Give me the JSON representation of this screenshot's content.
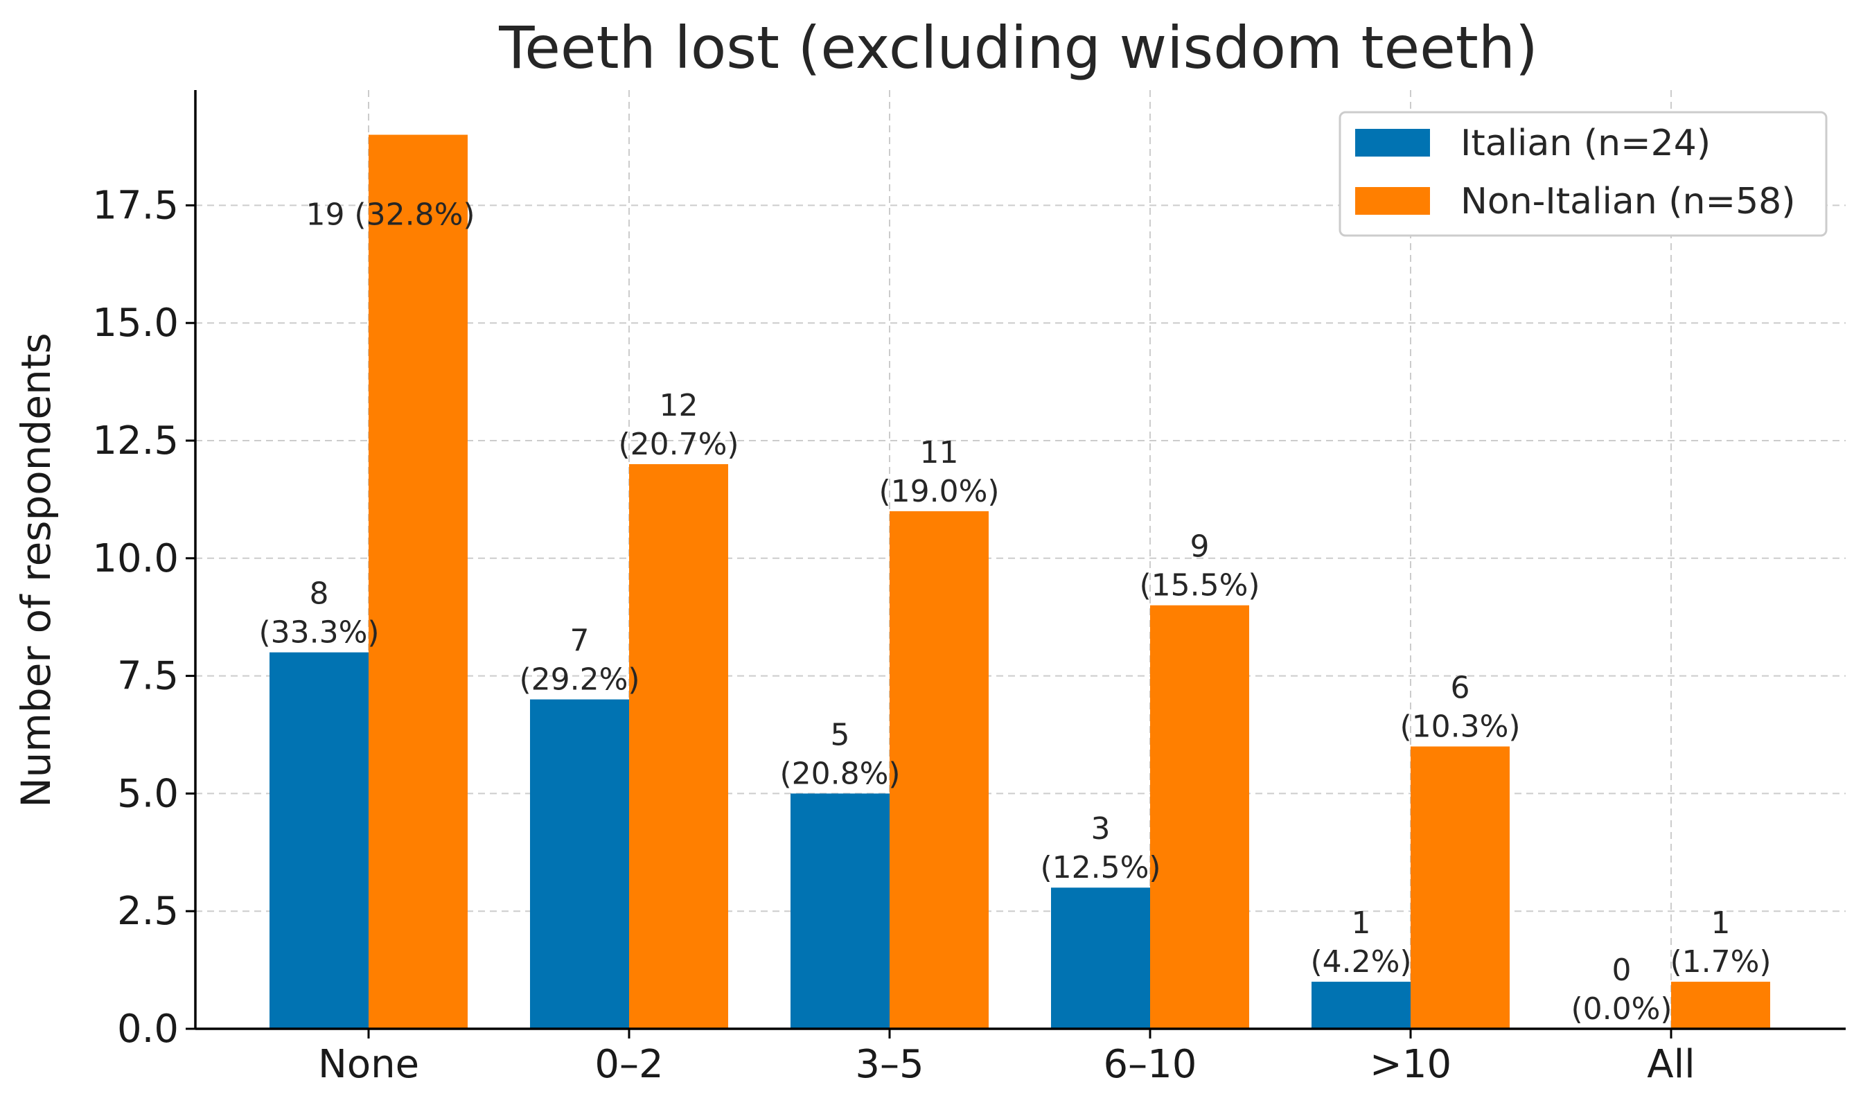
{
  "chart_data": {
    "type": "bar",
    "title": "Teeth lost (excluding wisdom teeth)",
    "xlabel": "",
    "ylabel": "Number of respondents",
    "categories": [
      "None",
      "0–2",
      "3–5",
      "6–10",
      ">10",
      "All"
    ],
    "ylim": [
      0,
      19.95
    ],
    "yticks": [
      0,
      2.5,
      5,
      7.5,
      10,
      12.5,
      15,
      17.5
    ],
    "ytick_labels": [
      "0.0",
      "2.5",
      "5.0",
      "7.5",
      "10.0",
      "12.5",
      "15.0",
      "17.5"
    ],
    "grid": true,
    "legend_position": "top-right",
    "series": [
      {
        "name": "Italian (n=24)",
        "color": "#0173b2",
        "values": [
          8,
          7,
          5,
          3,
          1,
          0
        ],
        "labels": [
          [
            "8",
            "(33.3%)"
          ],
          [
            "7",
            "(29.2%)"
          ],
          [
            "5",
            "(20.8%)"
          ],
          [
            "3",
            "(12.5%)"
          ],
          [
            "1",
            "(4.2%)"
          ],
          [
            "0",
            "(0.0%)"
          ]
        ]
      },
      {
        "name": "Non-Italian (n=58)",
        "color": "#ff7f00",
        "values": [
          19,
          12,
          11,
          9,
          6,
          1
        ],
        "labels": [
          [
            "19 (32.8%)"
          ],
          [
            "12",
            "(20.7%)"
          ],
          [
            "11",
            "(19.0%)"
          ],
          [
            "9",
            "(15.5%)"
          ],
          [
            "6",
            "(10.3%)"
          ],
          [
            "1",
            "(1.7%)"
          ]
        ]
      }
    ]
  }
}
